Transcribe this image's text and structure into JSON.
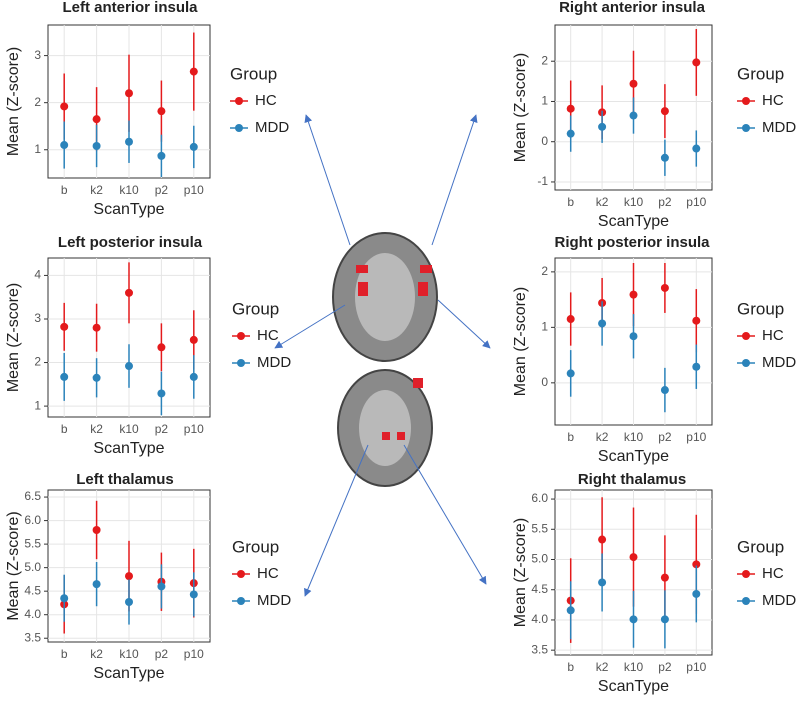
{
  "chart_data": [
    {
      "type": "errorbar",
      "title": "Left anterior insula",
      "x_label": "ScanType",
      "y_label": "Mean (Z-score)",
      "legend_title": "Group",
      "grid": true,
      "categories": [
        "b",
        "k2",
        "k10",
        "p2",
        "p10"
      ],
      "series": [
        {
          "name": "HC",
          "color": "#e41a1c",
          "values": [
            1.92,
            1.65,
            2.2,
            1.82,
            2.66
          ],
          "errors": [
            0.7,
            0.68,
            0.82,
            0.65,
            0.83
          ]
        },
        {
          "name": "MDD",
          "color": "#2b83ba",
          "values": [
            1.1,
            1.08,
            1.17,
            0.87,
            1.06
          ],
          "errors": [
            0.5,
            0.45,
            0.45,
            0.45,
            0.45
          ]
        }
      ],
      "ylim": [
        0.4,
        3.65
      ],
      "yticks": [
        1,
        2,
        3
      ]
    },
    {
      "type": "errorbar",
      "title": "Right anterior insula",
      "x_label": "ScanType",
      "y_label": "Mean (Z-score)",
      "legend_title": "Group",
      "grid": true,
      "categories": [
        "b",
        "k2",
        "k10",
        "p2",
        "p10"
      ],
      "series": [
        {
          "name": "HC",
          "color": "#e41a1c",
          "values": [
            0.82,
            0.73,
            1.44,
            0.76,
            1.97
          ],
          "errors": [
            0.7,
            0.67,
            0.82,
            0.67,
            0.83
          ]
        },
        {
          "name": "MDD",
          "color": "#2b83ba",
          "values": [
            0.2,
            0.37,
            0.65,
            -0.4,
            -0.17
          ],
          "errors": [
            0.45,
            0.4,
            0.45,
            0.45,
            0.45
          ]
        }
      ],
      "ylim": [
        -1.2,
        2.9
      ],
      "yticks": [
        -1,
        0,
        1,
        2
      ]
    },
    {
      "type": "errorbar",
      "title": "Left posterior insula",
      "x_label": "ScanType",
      "y_label": "Mean (Z-score)",
      "legend_title": "Group",
      "grid": true,
      "categories": [
        "b",
        "k2",
        "k10",
        "p2",
        "p10"
      ],
      "series": [
        {
          "name": "HC",
          "color": "#e41a1c",
          "values": [
            2.82,
            2.8,
            3.6,
            2.35,
            2.52
          ],
          "errors": [
            0.55,
            0.55,
            0.7,
            0.55,
            0.68
          ]
        },
        {
          "name": "MDD",
          "color": "#2b83ba",
          "values": [
            1.67,
            1.65,
            1.92,
            1.29,
            1.67
          ],
          "errors": [
            0.55,
            0.45,
            0.5,
            0.5,
            0.5
          ]
        }
      ],
      "ylim": [
        0.75,
        4.4
      ],
      "yticks": [
        1,
        2,
        3,
        4
      ]
    },
    {
      "type": "errorbar",
      "title": "Right posterior insula",
      "x_label": "ScanType",
      "y_label": "Mean (Z-score)",
      "legend_title": "Group",
      "grid": true,
      "categories": [
        "b",
        "k2",
        "k10",
        "p2",
        "p10"
      ],
      "series": [
        {
          "name": "HC",
          "color": "#e41a1c",
          "values": [
            1.15,
            1.44,
            1.59,
            1.71,
            1.12
          ],
          "errors": [
            0.48,
            0.45,
            0.57,
            0.45,
            0.57
          ]
        },
        {
          "name": "MDD",
          "color": "#2b83ba",
          "values": [
            0.17,
            1.07,
            0.84,
            -0.13,
            0.29
          ],
          "errors": [
            0.42,
            0.4,
            0.4,
            0.4,
            0.4
          ]
        }
      ],
      "ylim": [
        -0.76,
        2.25
      ],
      "yticks": [
        0,
        1,
        2
      ]
    },
    {
      "type": "errorbar",
      "title": "Left thalamus",
      "x_label": "ScanType",
      "y_label": "Mean (Z-score)",
      "legend_title": "Group",
      "grid": true,
      "categories": [
        "b",
        "k2",
        "k10",
        "p2",
        "p10"
      ],
      "series": [
        {
          "name": "HC",
          "color": "#e41a1c",
          "values": [
            4.22,
            5.8,
            4.82,
            4.7,
            4.67
          ],
          "errors": [
            0.62,
            0.62,
            0.75,
            0.62,
            0.73
          ]
        },
        {
          "name": "MDD",
          "color": "#2b83ba",
          "values": [
            4.35,
            4.65,
            4.27,
            4.6,
            4.43
          ],
          "errors": [
            0.5,
            0.47,
            0.48,
            0.47,
            0.47
          ]
        }
      ],
      "ylim": [
        3.42,
        6.65
      ],
      "yticks": [
        3.5,
        {
          "value": 4,
          "label": "4.0"
        },
        4.5,
        {
          "value": 5,
          "label": "5.0"
        },
        5.5,
        {
          "value": 6,
          "label": "6.0"
        },
        6.5
      ]
    },
    {
      "type": "errorbar",
      "title": "Right thalamus",
      "x_label": "ScanType",
      "y_label": "Mean (Z-score)",
      "legend_title": "Group",
      "grid": true,
      "categories": [
        "b",
        "k2",
        "k10",
        "p2",
        "p10"
      ],
      "series": [
        {
          "name": "HC",
          "color": "#e41a1c",
          "values": [
            4.32,
            5.33,
            5.04,
            4.7,
            4.92
          ],
          "errors": [
            0.7,
            0.7,
            0.82,
            0.7,
            0.82
          ]
        },
        {
          "name": "MDD",
          "color": "#2b83ba",
          "values": [
            4.16,
            4.62,
            4.01,
            4.01,
            4.43
          ],
          "errors": [
            0.48,
            0.48,
            0.47,
            0.48,
            0.47
          ]
        }
      ],
      "ylim": [
        3.42,
        6.15
      ],
      "yticks": [
        3.5,
        {
          "value": 4,
          "label": "4.0"
        },
        4.5,
        {
          "value": 5,
          "label": "5.0"
        },
        5.5,
        {
          "value": 6,
          "label": "6.0"
        }
      ]
    }
  ]
}
